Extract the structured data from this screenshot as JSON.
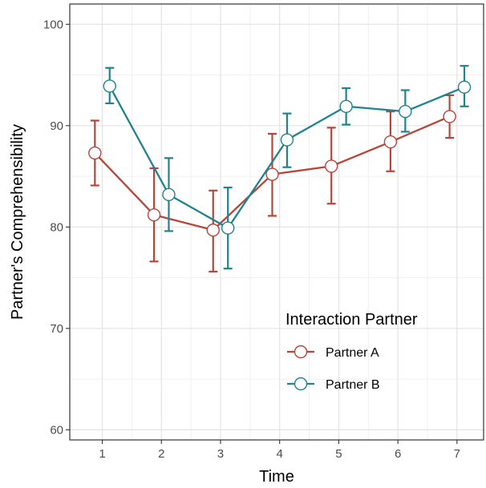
{
  "chart_data": {
    "type": "line",
    "xlabel": "Time",
    "ylabel": "Partner's Comprehensibility",
    "x": [
      1,
      2,
      3,
      4,
      5,
      6,
      7
    ],
    "xlim": [
      0.45,
      7.45
    ],
    "ylim": [
      59,
      102
    ],
    "x_ticks": [
      "1",
      "2",
      "3",
      "4",
      "5",
      "6",
      "7"
    ],
    "y_ticks": [
      "60",
      "70",
      "80",
      "90",
      "100"
    ],
    "grid": true,
    "legend": {
      "title": "Interaction Partner",
      "placement": "inside-bottom-right"
    },
    "series": [
      {
        "name": "Partner A",
        "color": "#b5473a",
        "values": [
          87.3,
          81.2,
          79.7,
          85.2,
          86.0,
          88.4,
          90.9
        ],
        "error_low": [
          84.1,
          76.6,
          75.6,
          81.1,
          82.3,
          85.5,
          88.8
        ],
        "error_high": [
          90.5,
          85.8,
          83.6,
          89.2,
          89.8,
          91.4,
          93.0
        ]
      },
      {
        "name": "Partner B",
        "color": "#1f848d",
        "values": [
          93.9,
          83.2,
          79.9,
          88.6,
          91.9,
          91.4,
          93.8
        ],
        "error_low": [
          92.2,
          79.6,
          75.9,
          85.9,
          90.1,
          89.4,
          91.9
        ],
        "error_high": [
          95.7,
          86.8,
          83.9,
          91.2,
          93.7,
          93.5,
          95.9
        ]
      }
    ]
  }
}
